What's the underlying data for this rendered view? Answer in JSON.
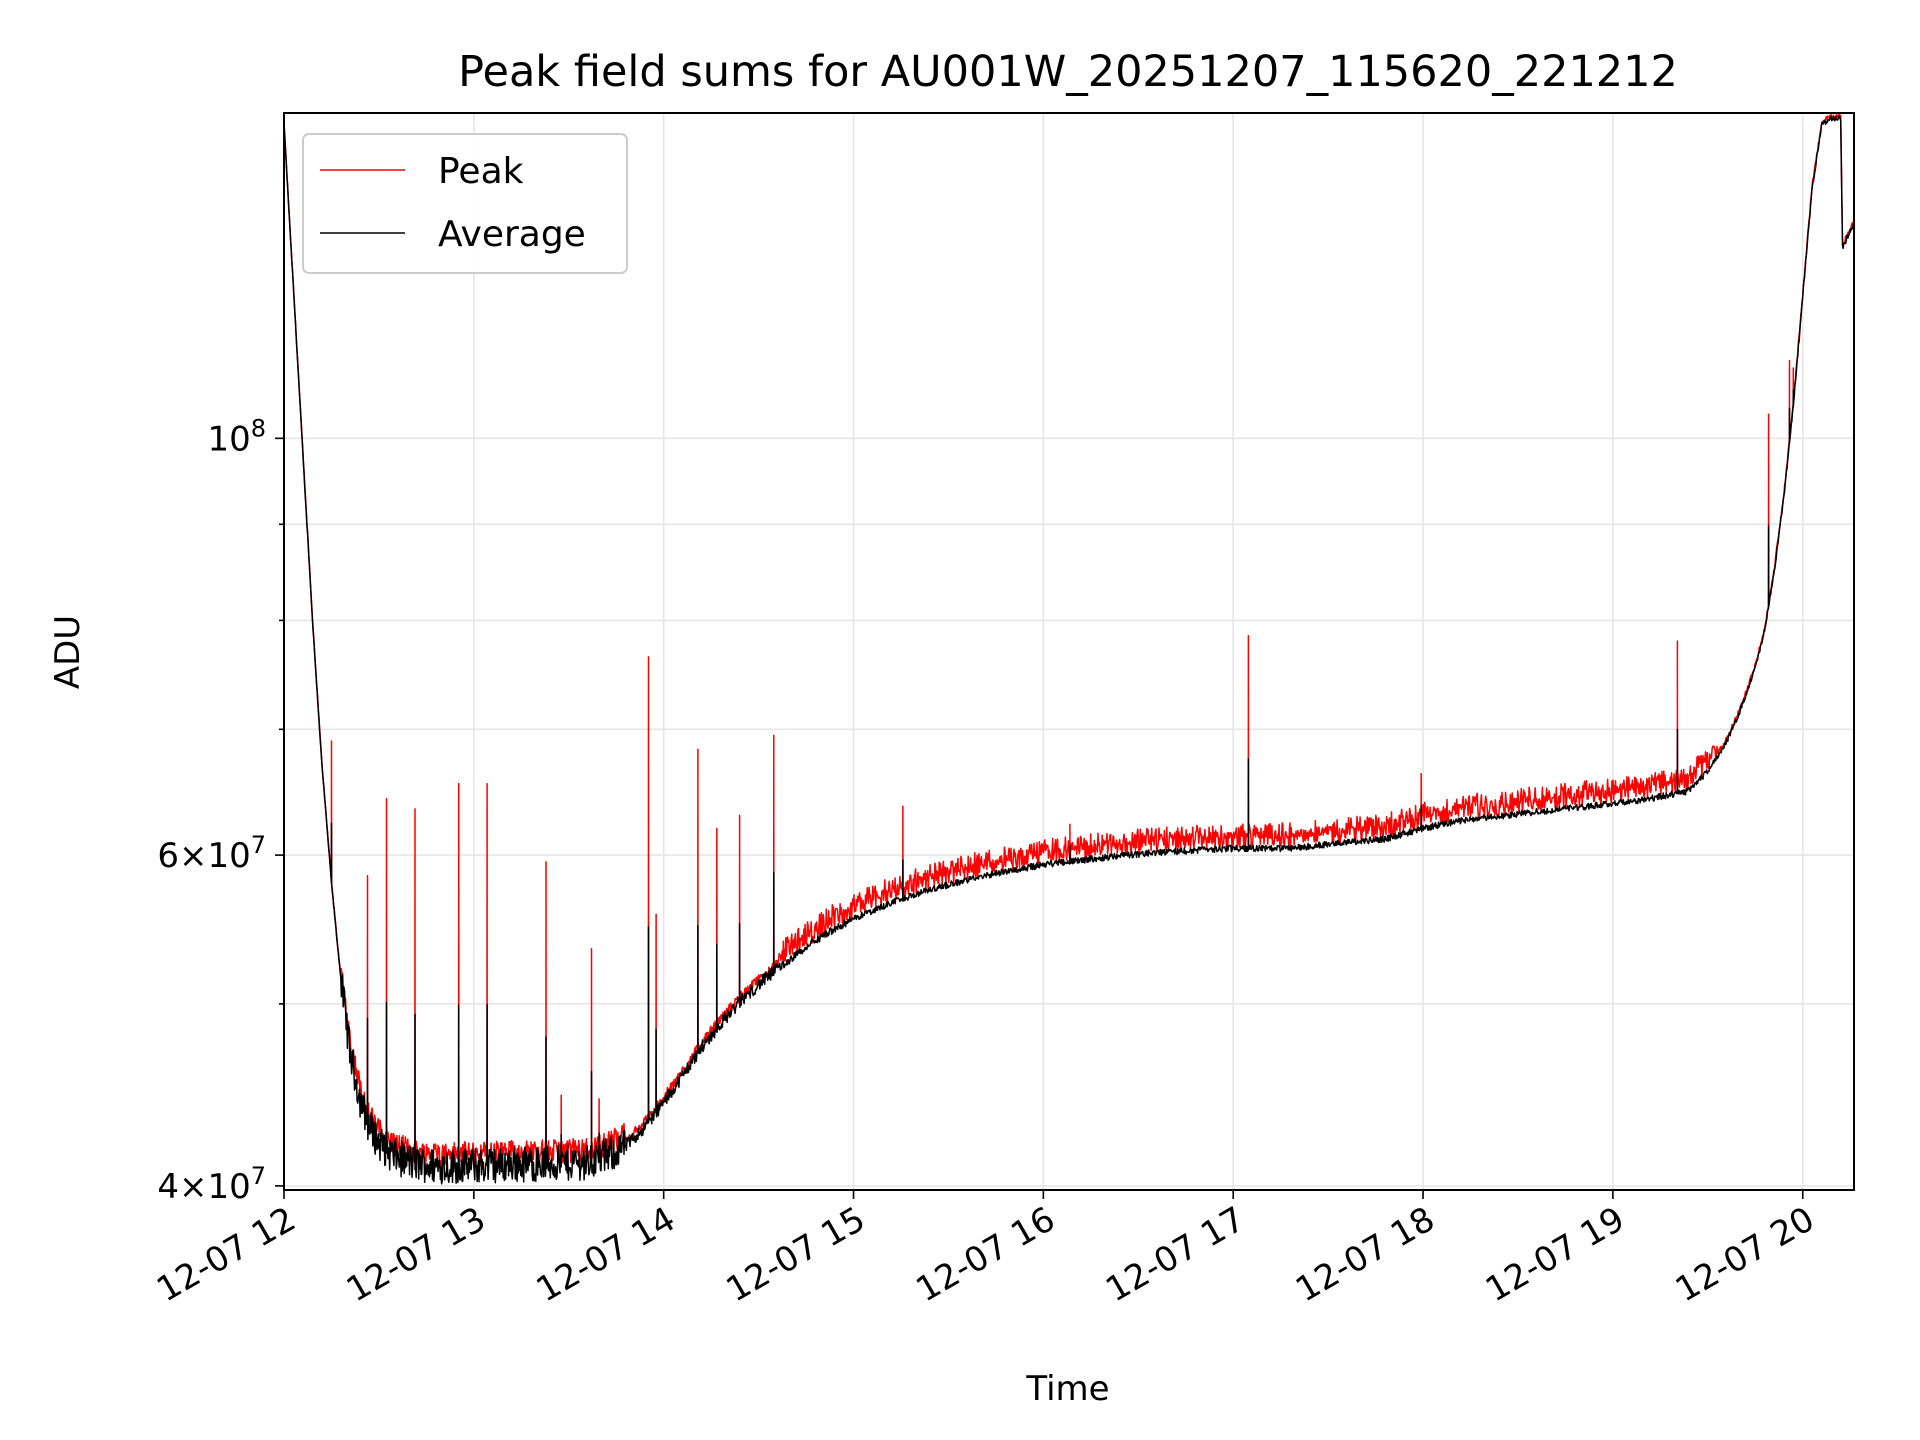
{
  "chart_data": {
    "type": "line",
    "title": "Peak field sums for AU001W_20251207_115620_221212",
    "xlabel": "Time",
    "ylabel": "ADU",
    "yscale": "log",
    "grid": true,
    "legend_position": "top-left",
    "xlim": [
      12.0,
      20.27
    ],
    "ylim": [
      39800000,
      149000000
    ],
    "x_ticks": [
      {
        "value": 12,
        "label": "12-07 12"
      },
      {
        "value": 13,
        "label": "12-07 13"
      },
      {
        "value": 14,
        "label": "12-07 14"
      },
      {
        "value": 15,
        "label": "12-07 15"
      },
      {
        "value": 16,
        "label": "12-07 16"
      },
      {
        "value": 17,
        "label": "12-07 17"
      },
      {
        "value": 18,
        "label": "12-07 18"
      },
      {
        "value": 19,
        "label": "12-07 19"
      },
      {
        "value": 20,
        "label": "12-07 20"
      }
    ],
    "y_major_ticks": [
      {
        "value": 40000000,
        "mantissa": "4",
        "exponent": "7"
      },
      {
        "value": 60000000,
        "mantissa": "6",
        "exponent": "7"
      },
      {
        "value": 100000000,
        "mantissa": "",
        "exponent": "8"
      }
    ],
    "y_minor_ticks": [
      50000000,
      70000000,
      80000000,
      90000000
    ],
    "average_curve": {
      "x": [
        12.0,
        12.05,
        12.1,
        12.15,
        12.2,
        12.25,
        12.3,
        12.35,
        12.4,
        12.45,
        12.5,
        12.55,
        12.6,
        12.7,
        12.8,
        12.9,
        13.0,
        13.2,
        13.4,
        13.6,
        13.7,
        13.8,
        13.9,
        14.0,
        14.1,
        14.2,
        14.3,
        14.4,
        14.5,
        14.6,
        14.7,
        14.8,
        14.9,
        15.0,
        15.2,
        15.4,
        15.6,
        15.8,
        16.0,
        16.3,
        16.6,
        17.0,
        17.3,
        17.5,
        17.8,
        18.0,
        18.2,
        18.5,
        18.8,
        19.0,
        19.2,
        19.4,
        19.5,
        19.55,
        19.6,
        19.65,
        19.7,
        19.75,
        19.8,
        19.85,
        19.9,
        19.95,
        20.0,
        20.05,
        20.1,
        20.15,
        20.2,
        20.21,
        20.22,
        20.25,
        20.27
      ],
      "y": [
        147000000,
        120000000,
        98000000,
        80000000,
        67000000,
        58000000,
        51500000,
        47000000,
        44500000,
        43000000,
        42200000,
        41700000,
        41400000,
        41100000,
        41000000,
        41000000,
        41000000,
        41100000,
        41100000,
        41200000,
        41500000,
        42000000,
        43000000,
        44300000,
        45800000,
        47400000,
        48800000,
        50100000,
        51200000,
        52200000,
        53100000,
        54000000,
        54800000,
        55500000,
        56600000,
        57500000,
        58200000,
        58800000,
        59300000,
        59800000,
        60200000,
        60500000,
        60500000,
        60800000,
        61200000,
        62000000,
        62600000,
        63100000,
        63600000,
        63900000,
        64300000,
        64900000,
        66500000,
        67700000,
        69000000,
        70800000,
        73000000,
        75500000,
        79000000,
        85000000,
        93000000,
        104000000,
        119000000,
        136000000,
        147000000,
        148000000,
        148000000,
        126000000,
        127000000,
        129000000,
        130000000
      ]
    },
    "peak_spikes": [
      {
        "x": 12.25,
        "y": 69000000
      },
      {
        "x": 12.44,
        "y": 58500000
      },
      {
        "x": 12.54,
        "y": 64300000
      },
      {
        "x": 12.69,
        "y": 63500000
      },
      {
        "x": 12.92,
        "y": 65500000
      },
      {
        "x": 13.07,
        "y": 65500000
      },
      {
        "x": 13.38,
        "y": 59500000
      },
      {
        "x": 13.46,
        "y": 44700000
      },
      {
        "x": 13.62,
        "y": 53500000
      },
      {
        "x": 13.66,
        "y": 44500000
      },
      {
        "x": 13.92,
        "y": 76500000
      },
      {
        "x": 13.96,
        "y": 55800000
      },
      {
        "x": 14.18,
        "y": 68300000
      },
      {
        "x": 14.28,
        "y": 62000000
      },
      {
        "x": 14.4,
        "y": 63000000
      },
      {
        "x": 14.58,
        "y": 69500000
      },
      {
        "x": 15.26,
        "y": 63700000
      },
      {
        "x": 16.14,
        "y": 62300000
      },
      {
        "x": 17.08,
        "y": 78500000
      },
      {
        "x": 17.99,
        "y": 66300000
      },
      {
        "x": 19.34,
        "y": 78000000
      },
      {
        "x": 19.82,
        "y": 103000000
      },
      {
        "x": 19.93,
        "y": 110000000
      },
      {
        "x": 19.95,
        "y": 109000000
      }
    ],
    "series": [
      {
        "name": "Peak",
        "color": "#ff0000"
      },
      {
        "name": "Average",
        "color": "#000000"
      }
    ]
  }
}
